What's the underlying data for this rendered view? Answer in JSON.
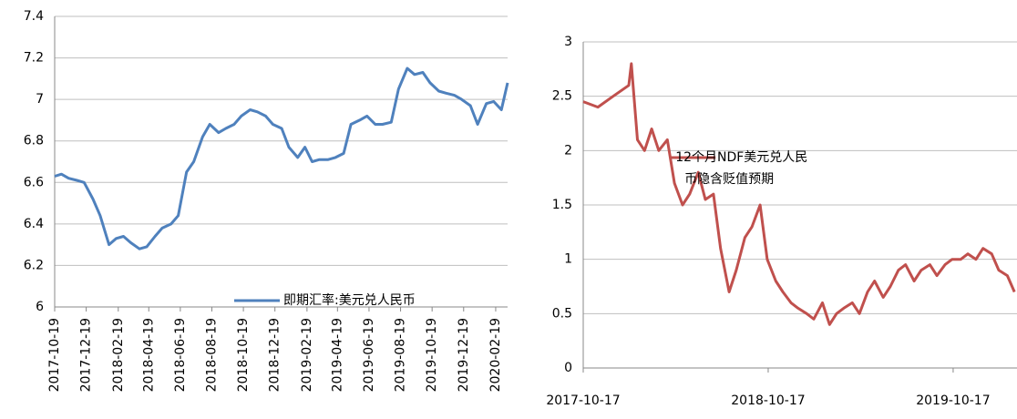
{
  "chart_data": [
    {
      "type": "line",
      "x": [
        "2017-10-19",
        "2017-11-01",
        "2017-11-15",
        "2017-12-01",
        "2017-12-15",
        "2018-01-01",
        "2018-01-15",
        "2018-02-01",
        "2018-02-15",
        "2018-03-01",
        "2018-03-15",
        "2018-04-01",
        "2018-04-15",
        "2018-05-01",
        "2018-05-15",
        "2018-06-01",
        "2018-06-15",
        "2018-07-01",
        "2018-07-15",
        "2018-08-01",
        "2018-08-15",
        "2018-09-01",
        "2018-09-15",
        "2018-10-01",
        "2018-10-15",
        "2018-11-01",
        "2018-11-15",
        "2018-12-01",
        "2018-12-15",
        "2019-01-01",
        "2019-01-15",
        "2019-02-01",
        "2019-02-15",
        "2019-03-01",
        "2019-03-15",
        "2019-04-01",
        "2019-04-15",
        "2019-05-01",
        "2019-05-15",
        "2019-06-01",
        "2019-06-15",
        "2019-07-01",
        "2019-07-15",
        "2019-08-01",
        "2019-08-15",
        "2019-09-01",
        "2019-09-15",
        "2019-10-01",
        "2019-10-15",
        "2019-11-01",
        "2019-11-15",
        "2019-12-01",
        "2019-12-15",
        "2020-01-01",
        "2020-01-15",
        "2020-02-01",
        "2020-02-15",
        "2020-03-01",
        "2020-03-13"
      ],
      "series": [
        {
          "name": "即期汇率:美元兑人民币",
          "color": "#4f81bd",
          "values": [
            6.63,
            6.64,
            6.62,
            6.61,
            6.6,
            6.52,
            6.44,
            6.3,
            6.33,
            6.34,
            6.31,
            6.28,
            6.29,
            6.34,
            6.38,
            6.4,
            6.44,
            6.65,
            6.7,
            6.82,
            6.88,
            6.84,
            6.86,
            6.88,
            6.92,
            6.95,
            6.94,
            6.92,
            6.88,
            6.86,
            6.77,
            6.72,
            6.77,
            6.7,
            6.71,
            6.71,
            6.72,
            6.74,
            6.88,
            6.9,
            6.92,
            6.88,
            6.88,
            6.89,
            7.05,
            7.15,
            7.12,
            7.13,
            7.08,
            7.04,
            7.03,
            7.02,
            7,
            6.97,
            6.88,
            6.98,
            6.99,
            6.95,
            7.08
          ]
        }
      ],
      "xlim": [
        "2017-10-19",
        "2020-03-13"
      ],
      "xticks": [
        "2017-10-19",
        "2017-12-19",
        "2018-02-19",
        "2018-04-19",
        "2018-06-19",
        "2018-08-19",
        "2018-10-19",
        "2018-12-19",
        "2019-02-19",
        "2019-04-19",
        "2019-06-19",
        "2019-08-19",
        "2019-10-19",
        "2019-12-19",
        "2020-02-19"
      ],
      "ylim": [
        6,
        7.4
      ],
      "yticks": [
        6,
        6.2,
        6.4,
        6.6,
        6.8,
        7,
        7.2,
        7.4
      ],
      "grid": true,
      "legend_position": "lower right"
    },
    {
      "type": "line",
      "x": [
        "2017-10-17",
        "2017-11-15",
        "2017-12-15",
        "2018-01-15",
        "2018-01-20",
        "2018-02-01",
        "2018-02-15",
        "2018-03-01",
        "2018-03-15",
        "2018-04-01",
        "2018-04-15",
        "2018-05-01",
        "2018-05-15",
        "2018-06-01",
        "2018-06-15",
        "2018-07-01",
        "2018-07-15",
        "2018-08-01",
        "2018-08-15",
        "2018-09-01",
        "2018-09-15",
        "2018-10-01",
        "2018-10-15",
        "2018-11-01",
        "2018-11-15",
        "2018-12-01",
        "2018-12-15",
        "2019-01-01",
        "2019-01-15",
        "2019-02-01",
        "2019-02-15",
        "2019-03-01",
        "2019-03-15",
        "2019-04-01",
        "2019-04-15",
        "2019-05-01",
        "2019-05-15",
        "2019-06-01",
        "2019-06-15",
        "2019-07-01",
        "2019-07-15",
        "2019-08-01",
        "2019-08-15",
        "2019-09-01",
        "2019-09-15",
        "2019-10-01",
        "2019-10-15",
        "2019-11-01",
        "2019-11-15",
        "2019-12-01",
        "2019-12-15",
        "2020-01-01",
        "2020-01-15",
        "2020-02-01",
        "2020-02-15"
      ],
      "series": [
        {
          "name": "12个月NDF美元兑人民币隐含贬值预期",
          "color": "#c0504d",
          "values": [
            2.45,
            2.4,
            2.5,
            2.6,
            2.8,
            2.1,
            2,
            2.2,
            2,
            2.1,
            1.7,
            1.5,
            1.6,
            1.8,
            1.55,
            1.6,
            1.1,
            0.7,
            0.9,
            1.2,
            1.3,
            1.5,
            1,
            0.8,
            0.7,
            0.6,
            0.55,
            0.5,
            0.45,
            0.6,
            0.4,
            0.5,
            0.55,
            0.6,
            0.5,
            0.7,
            0.8,
            0.65,
            0.75,
            0.9,
            0.95,
            0.8,
            0.9,
            0.95,
            0.85,
            0.95,
            1,
            1,
            1.05,
            1,
            1.1,
            1.05,
            0.9,
            0.85,
            0.7
          ]
        }
      ],
      "xlim": [
        "2017-10-17",
        "2020-02-20"
      ],
      "xticks": [
        "2017-10-17",
        "2018-10-17",
        "2019-10-17"
      ],
      "ylim": [
        0,
        3
      ],
      "yticks": [
        0,
        0.5,
        1,
        1.5,
        2,
        2.5,
        3
      ],
      "grid": true,
      "legend_position": "upper center"
    }
  ]
}
